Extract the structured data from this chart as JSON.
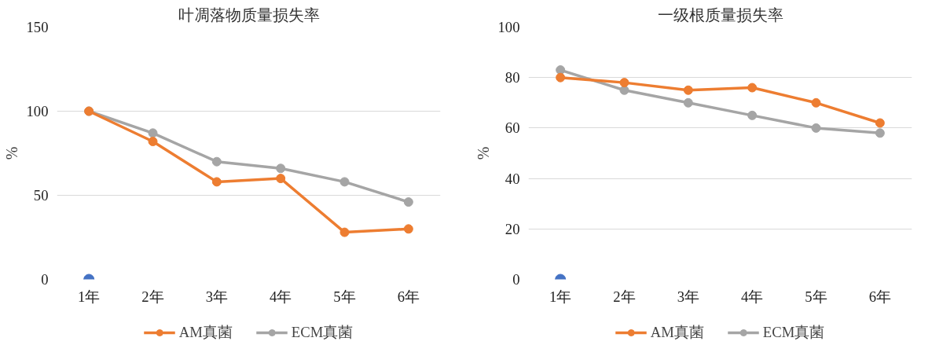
{
  "chart_data": [
    {
      "type": "line",
      "title": "叶凋落物质量损失率",
      "ylabel": "%",
      "categories": [
        "1年",
        "2年",
        "3年",
        "4年",
        "5年",
        "6年"
      ],
      "ylim": [
        0,
        150
      ],
      "yticks": [
        0,
        50,
        100,
        150
      ],
      "grid": "y",
      "legend": "bottom",
      "marker": "circle",
      "series": [
        {
          "name": "AM真菌",
          "color": "#ed7d31",
          "values": [
            100,
            82,
            58,
            60,
            28,
            30
          ]
        },
        {
          "name": "ECM真菌",
          "color": "#a5a5a5",
          "values": [
            100,
            87,
            70,
            66,
            58,
            46
          ]
        },
        {
          "type": "scatter",
          "color": "#4472c4",
          "values": [
            0,
            null,
            null,
            null,
            null,
            null
          ]
        }
      ]
    },
    {
      "type": "line",
      "title": "一级根质量损失率",
      "ylabel": "%",
      "categories": [
        "1年",
        "2年",
        "3年",
        "4年",
        "5年",
        "6年"
      ],
      "ylim": [
        0,
        100
      ],
      "yticks": [
        0,
        20,
        40,
        60,
        80,
        100
      ],
      "grid": "y",
      "legend": "bottom",
      "marker": "circle",
      "series": [
        {
          "name": "AM真菌",
          "color": "#ed7d31",
          "values": [
            80,
            78,
            75,
            76,
            70,
            62
          ]
        },
        {
          "name": "ECM真菌",
          "color": "#a5a5a5",
          "values": [
            83,
            75,
            70,
            65,
            60,
            58
          ]
        },
        {
          "type": "scatter",
          "color": "#4472c4",
          "values": [
            0,
            null,
            null,
            null,
            null,
            null
          ]
        }
      ]
    }
  ]
}
